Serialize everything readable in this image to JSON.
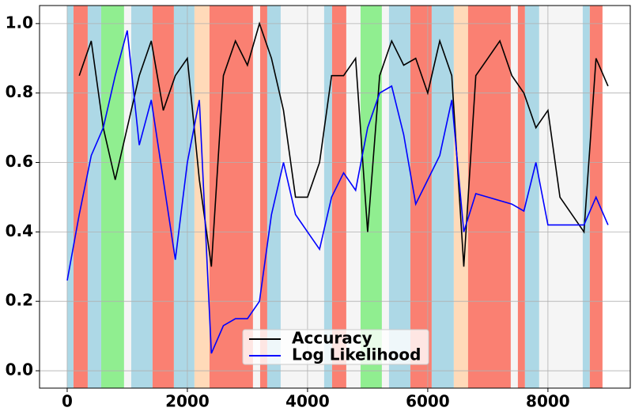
{
  "chart_data": {
    "type": "line",
    "x": [
      0,
      200,
      400,
      600,
      800,
      1000,
      1200,
      1400,
      1600,
      1800,
      2000,
      2200,
      2400,
      2600,
      2800,
      3000,
      3200,
      3400,
      3600,
      3800,
      4000,
      4200,
      4400,
      4600,
      4800,
      5000,
      5200,
      5400,
      5600,
      5800,
      6000,
      6200,
      6400,
      6600,
      6800,
      7000,
      7200,
      7400,
      7600,
      7800,
      8000,
      8200,
      8400,
      8600,
      8800,
      9000
    ],
    "series": [
      {
        "name": "Accuracy",
        "color": "#000000",
        "values": [
          null,
          0.85,
          0.95,
          0.7,
          0.55,
          0.7,
          0.85,
          0.95,
          0.75,
          0.85,
          0.9,
          0.55,
          0.3,
          0.85,
          0.95,
          0.88,
          1.0,
          0.9,
          0.75,
          0.5,
          0.5,
          0.6,
          0.85,
          0.85,
          0.9,
          0.4,
          0.85,
          0.95,
          0.88,
          0.9,
          0.8,
          0.95,
          0.85,
          0.3,
          0.85,
          0.9,
          0.95,
          0.85,
          0.8,
          0.7,
          0.75,
          0.5,
          0.45,
          0.4,
          0.9,
          0.82
        ]
      },
      {
        "name": "Log Likelihood",
        "color": "#0000ff",
        "values": [
          0.26,
          0.45,
          0.62,
          0.7,
          0.85,
          0.98,
          0.65,
          0.78,
          0.55,
          0.32,
          0.6,
          0.78,
          0.05,
          0.13,
          0.15,
          0.15,
          0.2,
          0.45,
          0.6,
          0.45,
          0.4,
          0.35,
          0.5,
          0.57,
          0.52,
          0.7,
          0.8,
          0.82,
          0.68,
          0.48,
          0.55,
          0.62,
          0.78,
          0.4,
          0.51,
          0.5,
          0.49,
          0.48,
          0.46,
          0.6,
          0.42,
          0.42,
          0.42,
          0.42,
          0.5,
          0.42
        ]
      }
    ],
    "spans": [
      {
        "start": 0,
        "end": 105,
        "color": "#add8e6"
      },
      {
        "start": 105,
        "end": 342,
        "color": "#fa8072"
      },
      {
        "start": 342,
        "end": 566,
        "color": "#add8e6"
      },
      {
        "start": 566,
        "end": 947,
        "color": "#90ee90"
      },
      {
        "start": 947,
        "end": 1066,
        "color": "#f5f5f5"
      },
      {
        "start": 1066,
        "end": 1421,
        "color": "#add8e6"
      },
      {
        "start": 1421,
        "end": 1776,
        "color": "#fa8072"
      },
      {
        "start": 1776,
        "end": 2118,
        "color": "#add8e6"
      },
      {
        "start": 2118,
        "end": 2368,
        "color": "#ffdab9"
      },
      {
        "start": 2368,
        "end": 3092,
        "color": "#fa8072"
      },
      {
        "start": 3092,
        "end": 3211,
        "color": "#f5f5f5"
      },
      {
        "start": 3211,
        "end": 3329,
        "color": "#fa8072"
      },
      {
        "start": 3329,
        "end": 3553,
        "color": "#add8e6"
      },
      {
        "start": 3553,
        "end": 4276,
        "color": "#f5f5f5"
      },
      {
        "start": 4276,
        "end": 4408,
        "color": "#add8e6"
      },
      {
        "start": 4408,
        "end": 4645,
        "color": "#fa8072"
      },
      {
        "start": 4645,
        "end": 4882,
        "color": "#f5f5f5"
      },
      {
        "start": 4882,
        "end": 5237,
        "color": "#90ee90"
      },
      {
        "start": 5237,
        "end": 5355,
        "color": "#f5f5f5"
      },
      {
        "start": 5355,
        "end": 5711,
        "color": "#add8e6"
      },
      {
        "start": 5711,
        "end": 6066,
        "color": "#fa8072"
      },
      {
        "start": 6066,
        "end": 6434,
        "color": "#add8e6"
      },
      {
        "start": 6434,
        "end": 6671,
        "color": "#ffdab9"
      },
      {
        "start": 6671,
        "end": 7382,
        "color": "#fa8072"
      },
      {
        "start": 7382,
        "end": 7500,
        "color": "#f5f5f5"
      },
      {
        "start": 7500,
        "end": 7618,
        "color": "#fa8072"
      },
      {
        "start": 7618,
        "end": 7855,
        "color": "#add8e6"
      },
      {
        "start": 7855,
        "end": 8579,
        "color": "#f5f5f5"
      },
      {
        "start": 8579,
        "end": 8697,
        "color": "#add8e6"
      },
      {
        "start": 8697,
        "end": 8908,
        "color": "#fa8072"
      }
    ],
    "xlim": [
      -460,
      9370
    ],
    "ylim": [
      -0.05,
      1.052
    ],
    "xticks": [
      0,
      2000,
      4000,
      6000,
      8000
    ],
    "yticks": [
      {
        "value": 0,
        "label": "0.0"
      },
      0.2,
      0.4,
      0.6,
      0.8,
      {
        "value": 1,
        "label": "1.0"
      }
    ],
    "grid": true,
    "legend": "lower center"
  }
}
